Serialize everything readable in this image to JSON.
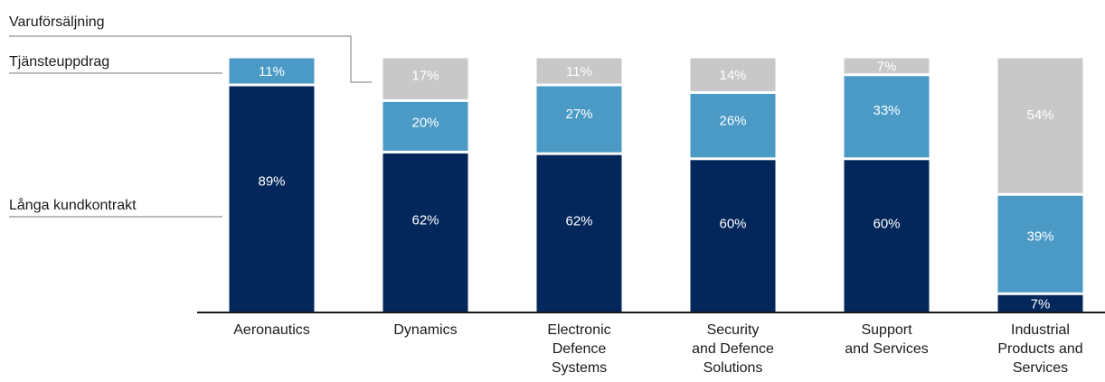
{
  "chart_data": {
    "type": "bar",
    "stacked": true,
    "percent": true,
    "categories": [
      [
        "Aeronautics"
      ],
      [
        "Dynamics"
      ],
      [
        "Electronic",
        "Defence",
        "Systems"
      ],
      [
        "Security",
        "and Defence",
        "Solutions"
      ],
      [
        "Support",
        "and Services"
      ],
      [
        "Industrial",
        "Products and",
        "Services"
      ]
    ],
    "series": [
      {
        "name": "Långa kundkontrakt",
        "color": "#03275a",
        "values": [
          89,
          62,
          62,
          60,
          60,
          7
        ],
        "labels": [
          "89%",
          "62%",
          "62%",
          "60%",
          "60%",
          "7%"
        ]
      },
      {
        "name": "Tjänsteuppdrag",
        "color": "#4b9ac6",
        "values": [
          11,
          20,
          27,
          26,
          33,
          39
        ],
        "labels": [
          "11%",
          "20%",
          "27%",
          "26%",
          "33%",
          "39%"
        ]
      },
      {
        "name": "Varuförsäljning",
        "color": "#c8c8c8",
        "values": [
          0,
          17,
          11,
          14,
          7,
          54
        ],
        "labels": [
          "",
          "17%",
          "11%",
          "14%",
          "7%",
          "54%"
        ]
      }
    ],
    "ylim": [
      0,
      100
    ],
    "grid": false,
    "legend": "left"
  }
}
